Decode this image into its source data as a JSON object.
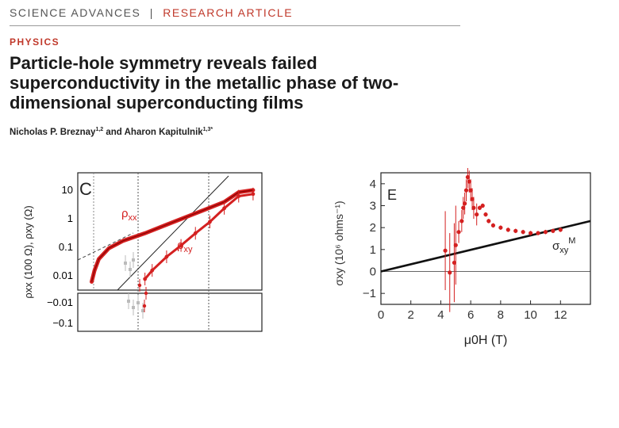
{
  "header": {
    "journal": "SCIENCE ADVANCES",
    "separator": "|",
    "article_type": "RESEARCH ARTICLE"
  },
  "section": "PHYSICS",
  "title": "Particle-hole symmetry reveals failed superconductivity in the metallic phase of two-dimensional superconducting films",
  "authors": [
    {
      "name": "Nicholas P. Breznay",
      "affil": "1,2"
    },
    {
      "name": "Aharon Kapitulnik",
      "affil": "1,3*"
    }
  ],
  "author_joiner": "and",
  "colors": {
    "accent": "#c0392b",
    "data_red": "#d42020",
    "grey": "#bbbbbb"
  },
  "chart_data": [
    {
      "panel": "C",
      "type": "line",
      "ylabel": "ρxx (100 Ω), ρxy (Ω)",
      "yscale": "log",
      "ytick_labels": [
        "10",
        "1",
        "0.1",
        "0.01",
        "−0.01",
        "−0.1"
      ],
      "series": [
        {
          "name": "ρxx",
          "x": [
            0.8,
            1.0,
            1.3,
            2.0,
            3.0,
            4.5,
            6.0,
            8.0,
            10.0,
            11.0,
            12.0
          ],
          "y": [
            0.008,
            0.02,
            0.05,
            0.12,
            0.22,
            0.4,
            0.8,
            2.0,
            5.0,
            11.0,
            13.0
          ]
        },
        {
          "name": "ρxy",
          "x": [
            4.5,
            5.0,
            6.0,
            7.0,
            8.0,
            9.0,
            10.0,
            11.0,
            12.0
          ],
          "y": [
            0.01,
            0.02,
            0.06,
            0.15,
            0.4,
            1.0,
            3.0,
            8.0,
            9.5
          ]
        }
      ],
      "series_labels": [
        {
          "main": "ρ",
          "sub": "xx"
        },
        {
          "main": "ρ",
          "sub": "xy"
        }
      ]
    },
    {
      "panel": "E",
      "type": "scatter",
      "xlabel": "μ0H (T)",
      "ylabel": "σxy (10⁶ ohms⁻¹)",
      "xlim": [
        0,
        14
      ],
      "ylim": [
        -1.5,
        4.5
      ],
      "xticks": [
        0,
        2,
        4,
        6,
        8,
        10,
        12
      ],
      "yticks": [
        -1,
        0,
        1,
        2,
        3,
        4
      ],
      "series": [
        {
          "name": "σxy (data)",
          "x": [
            4.3,
            4.6,
            4.9,
            5.0,
            5.2,
            5.4,
            5.5,
            5.6,
            5.7,
            5.8,
            5.9,
            6.0,
            6.1,
            6.2,
            6.4,
            6.6,
            6.8,
            7.0,
            7.2,
            7.5,
            8.0,
            8.5,
            9.0,
            9.5,
            10.0,
            10.5,
            11.0,
            11.5,
            12.0
          ],
          "y": [
            0.95,
            -0.05,
            0.4,
            1.2,
            1.8,
            2.3,
            2.9,
            3.1,
            3.7,
            4.3,
            4.1,
            3.7,
            3.3,
            2.9,
            2.6,
            2.9,
            3.0,
            2.6,
            2.3,
            2.1,
            2.0,
            1.9,
            1.85,
            1.8,
            1.75,
            1.75,
            1.8,
            1.85,
            1.9
          ]
        },
        {
          "name": "σxy M",
          "x": [
            0,
            14
          ],
          "y": [
            0.0,
            2.3
          ]
        }
      ],
      "annotation": {
        "main": "σ",
        "sub": "xy",
        "sup": "M"
      }
    }
  ]
}
